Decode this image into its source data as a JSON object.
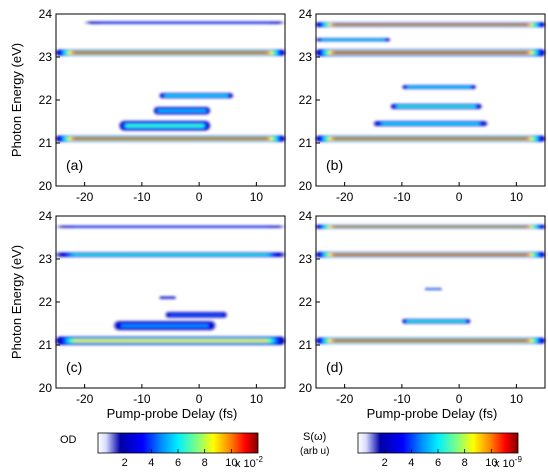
{
  "chart_data": [
    {
      "type": "heatmap",
      "panel_label": "(a)",
      "xlabel": "",
      "ylabel": "Photon Energy (eV)",
      "xlim": [
        -25,
        15
      ],
      "ylim": [
        20,
        24
      ],
      "xticks": [
        -20,
        -10,
        0,
        10
      ],
      "yticks": [
        20,
        21,
        22,
        23,
        24
      ],
      "colorbar": "OD",
      "features": [
        {
          "energy": 23.8,
          "from": -20,
          "to": 15,
          "width": 0.04,
          "level": 0.35
        },
        {
          "energy": 23.1,
          "from": -25,
          "to": 15,
          "width": 0.09,
          "level": 1.0
        },
        {
          "energy": 21.1,
          "from": -25,
          "to": 15,
          "width": 0.09,
          "level": 1.0
        },
        {
          "energy": 21.4,
          "from": -14,
          "to": 2,
          "width": 0.15,
          "level": 0.55
        },
        {
          "energy": 21.75,
          "from": -8,
          "to": 2,
          "width": 0.12,
          "level": 0.45
        },
        {
          "energy": 22.1,
          "from": -7,
          "to": 6,
          "width": 0.08,
          "level": 0.5
        }
      ]
    },
    {
      "type": "heatmap",
      "panel_label": "(b)",
      "xlabel": "",
      "ylabel": "",
      "xlim": [
        -25,
        15
      ],
      "ylim": [
        20,
        24
      ],
      "xticks": [
        -20,
        -10,
        0,
        10
      ],
      "yticks": [
        20,
        21,
        22,
        23,
        24
      ],
      "colorbar": "S(ω)",
      "features": [
        {
          "energy": 23.75,
          "from": -25,
          "to": 15,
          "width": 0.07,
          "level": 1.0
        },
        {
          "energy": 23.4,
          "from": -25,
          "to": -12,
          "width": 0.05,
          "level": 0.5
        },
        {
          "energy": 23.1,
          "from": -25,
          "to": 15,
          "width": 0.1,
          "level": 1.0
        },
        {
          "energy": 22.3,
          "from": -10,
          "to": 3,
          "width": 0.06,
          "level": 0.5
        },
        {
          "energy": 21.85,
          "from": -12,
          "to": 4,
          "width": 0.08,
          "level": 0.55
        },
        {
          "energy": 21.45,
          "from": -15,
          "to": 5,
          "width": 0.08,
          "level": 0.5
        },
        {
          "energy": 21.1,
          "from": -25,
          "to": 15,
          "width": 0.09,
          "level": 1.0
        }
      ]
    },
    {
      "type": "heatmap",
      "panel_label": "(c)",
      "xlabel": "Pump-probe Delay (fs)",
      "ylabel": "Photon Energy (eV)",
      "xlim": [
        -25,
        15
      ],
      "ylim": [
        20,
        24
      ],
      "xticks": [
        -20,
        -10,
        0,
        10
      ],
      "yticks": [
        20,
        21,
        22,
        23,
        24
      ],
      "colorbar": "OD",
      "features": [
        {
          "energy": 23.75,
          "from": -25,
          "to": 15,
          "width": 0.04,
          "level": 0.35
        },
        {
          "energy": 23.1,
          "from": -25,
          "to": 15,
          "width": 0.07,
          "level": 0.55
        },
        {
          "energy": 21.1,
          "from": -25,
          "to": 15,
          "width": 0.12,
          "level": 0.75
        },
        {
          "energy": 21.45,
          "from": -15,
          "to": 3,
          "width": 0.15,
          "level": 0.4
        },
        {
          "energy": 21.7,
          "from": -6,
          "to": 5,
          "width": 0.1,
          "level": 0.35
        },
        {
          "energy": 22.1,
          "from": -7,
          "to": -4,
          "width": 0.05,
          "level": 0.25
        }
      ]
    },
    {
      "type": "heatmap",
      "panel_label": "(d)",
      "xlabel": "Pump-probe Delay (fs)",
      "ylabel": "",
      "xlim": [
        -25,
        15
      ],
      "ylim": [
        20,
        24
      ],
      "xticks": [
        -20,
        -10,
        0,
        10
      ],
      "yticks": [
        20,
        21,
        22,
        23,
        24
      ],
      "colorbar": "S(ω)",
      "features": [
        {
          "energy": 23.75,
          "from": -25,
          "to": 15,
          "width": 0.06,
          "level": 1.0
        },
        {
          "energy": 23.1,
          "from": -25,
          "to": 15,
          "width": 0.08,
          "level": 1.0
        },
        {
          "energy": 22.3,
          "from": -6,
          "to": -3,
          "width": 0.03,
          "level": 0.4
        },
        {
          "energy": 21.55,
          "from": -10,
          "to": 2,
          "width": 0.07,
          "level": 0.55
        },
        {
          "energy": 21.1,
          "from": -25,
          "to": 15,
          "width": 0.09,
          "level": 1.0
        }
      ]
    }
  ],
  "colorbars": [
    {
      "label": "OD",
      "ticks": [
        "2",
        "4",
        "6",
        "8",
        "10"
      ],
      "range": [
        0,
        12
      ],
      "multiplier_prefix": "x 10",
      "multiplier_exp": "-2"
    },
    {
      "label": "S(ω)",
      "sublabel": "(arb u)",
      "ticks": [
        "2",
        "4",
        "6",
        "8",
        "10"
      ],
      "range": [
        0,
        12
      ],
      "multiplier_prefix": "x 10",
      "multiplier_exp": "-9"
    }
  ]
}
